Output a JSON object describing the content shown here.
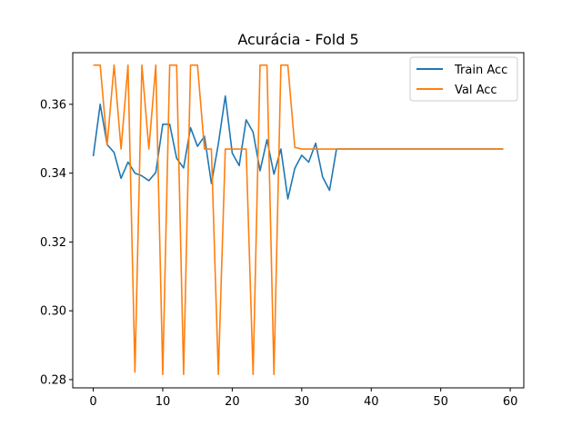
{
  "chart_data": {
    "type": "line",
    "title": "Acurácia - Fold 5",
    "xlabel": "",
    "ylabel": "",
    "xlim": [
      -2.95,
      61.95
    ],
    "ylim": [
      0.2776,
      0.375
    ],
    "x_ticks": [
      0,
      10,
      20,
      30,
      40,
      50,
      60
    ],
    "y_ticks": [
      0.28,
      0.3,
      0.32,
      0.34,
      0.36
    ],
    "y_tick_labels": [
      "0.28",
      "0.30",
      "0.32",
      "0.34",
      "0.36"
    ],
    "grid": false,
    "legend_position": "top-right",
    "x": [
      0,
      1,
      2,
      3,
      4,
      5,
      6,
      7,
      8,
      9,
      10,
      11,
      12,
      13,
      14,
      15,
      16,
      17,
      18,
      19,
      20,
      21,
      22,
      23,
      24,
      25,
      26,
      27,
      28,
      29,
      30,
      31,
      32,
      33,
      34,
      35,
      36,
      37,
      38,
      39,
      40,
      41,
      42,
      43,
      44,
      45,
      46,
      47,
      48,
      49,
      50,
      51,
      52,
      53,
      54,
      55,
      56,
      57,
      58,
      59
    ],
    "series": [
      {
        "name": "Train Acc",
        "color": "#1f77b4",
        "values": [
          0.3449,
          0.36,
          0.3483,
          0.346,
          0.3385,
          0.3432,
          0.34,
          0.3392,
          0.3378,
          0.3402,
          0.3542,
          0.3542,
          0.3443,
          0.3415,
          0.3532,
          0.3478,
          0.3507,
          0.337,
          0.3485,
          0.3624,
          0.3458,
          0.3422,
          0.3555,
          0.3519,
          0.3407,
          0.3497,
          0.3397,
          0.347,
          0.3325,
          0.3414,
          0.3452,
          0.3432,
          0.3487,
          0.3389,
          0.335,
          0.347,
          0.347,
          0.347,
          0.347,
          0.347,
          0.347,
          0.347,
          0.347,
          0.347,
          0.347,
          0.347,
          0.347,
          0.347,
          0.347,
          0.347,
          0.347,
          0.347,
          0.347,
          0.347,
          0.347,
          0.347,
          0.347,
          0.347,
          0.347,
          0.347
        ]
      },
      {
        "name": "Val Acc",
        "color": "#ff7f0e",
        "values": [
          0.3714,
          0.3714,
          0.3482,
          0.3714,
          0.347,
          0.3714,
          0.2822,
          0.3714,
          0.347,
          0.3714,
          0.2815,
          0.3714,
          0.3714,
          0.2815,
          0.3714,
          0.3714,
          0.347,
          0.347,
          0.2815,
          0.347,
          0.347,
          0.347,
          0.347,
          0.2815,
          0.3714,
          0.3714,
          0.2815,
          0.3714,
          0.3714,
          0.3475,
          0.347,
          0.347,
          0.347,
          0.347,
          0.347,
          0.347,
          0.347,
          0.347,
          0.347,
          0.347,
          0.347,
          0.347,
          0.347,
          0.347,
          0.347,
          0.347,
          0.347,
          0.347,
          0.347,
          0.347,
          0.347,
          0.347,
          0.347,
          0.347,
          0.347,
          0.347,
          0.347,
          0.347,
          0.347,
          0.347
        ]
      }
    ]
  }
}
